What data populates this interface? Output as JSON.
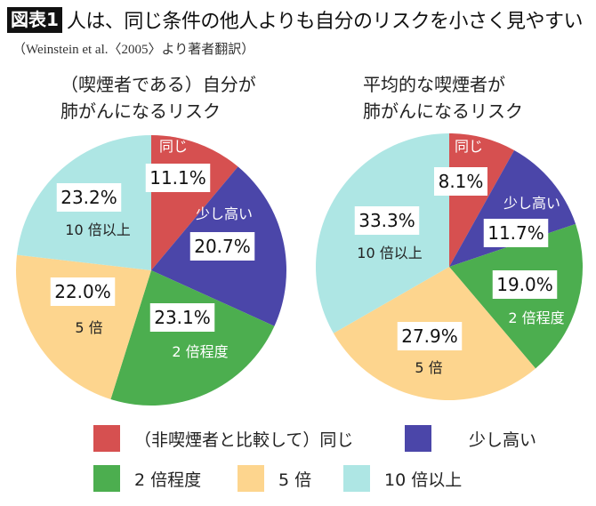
{
  "header": {
    "badge": "図表1",
    "title": "人は、同じ条件の他人よりも自分のリスクを小さく見やすい",
    "source": "（Weinstein et al.〈2005〉より著者翻訳）"
  },
  "colors": {
    "same": "#d65050",
    "slightly_higher": "#4b46a9",
    "twice": "#4cae4f",
    "five_times": "#fdd58e",
    "ten_plus": "#aee6e4"
  },
  "chart_data": [
    {
      "type": "pie",
      "title_lines": [
        "（喫煙者である）自分が",
        "肺がんになるリスク"
      ],
      "categories": [
        "同じ",
        "少し高い",
        "2倍程度",
        "5倍",
        "10倍以上"
      ],
      "values": [
        11.1,
        20.7,
        23.1,
        22.0,
        23.2
      ],
      "value_labels": [
        "11.1%",
        "20.7%",
        "23.1%",
        "22.0%",
        "23.2%"
      ],
      "category_labels": [
        "同じ",
        "少し高い",
        "2 倍程度",
        "5 倍",
        "10 倍以上"
      ]
    },
    {
      "type": "pie",
      "title_lines": [
        "平均的な喫煙者が",
        "肺がんになるリスク"
      ],
      "categories": [
        "同じ",
        "少し高い",
        "2倍程度",
        "5倍",
        "10倍以上"
      ],
      "values": [
        8.1,
        11.7,
        19.0,
        27.9,
        33.3
      ],
      "value_labels": [
        "8.1%",
        "11.7%",
        "19.0%",
        "27.9%",
        "33.3%"
      ],
      "category_labels": [
        "同じ",
        "少し高い",
        "2 倍程度",
        "5 倍",
        "10 倍以上"
      ]
    }
  ],
  "legend": [
    "（非喫煙者と比較して）同じ",
    "少し高い",
    "2 倍程度",
    "5 倍",
    "10 倍以上"
  ]
}
